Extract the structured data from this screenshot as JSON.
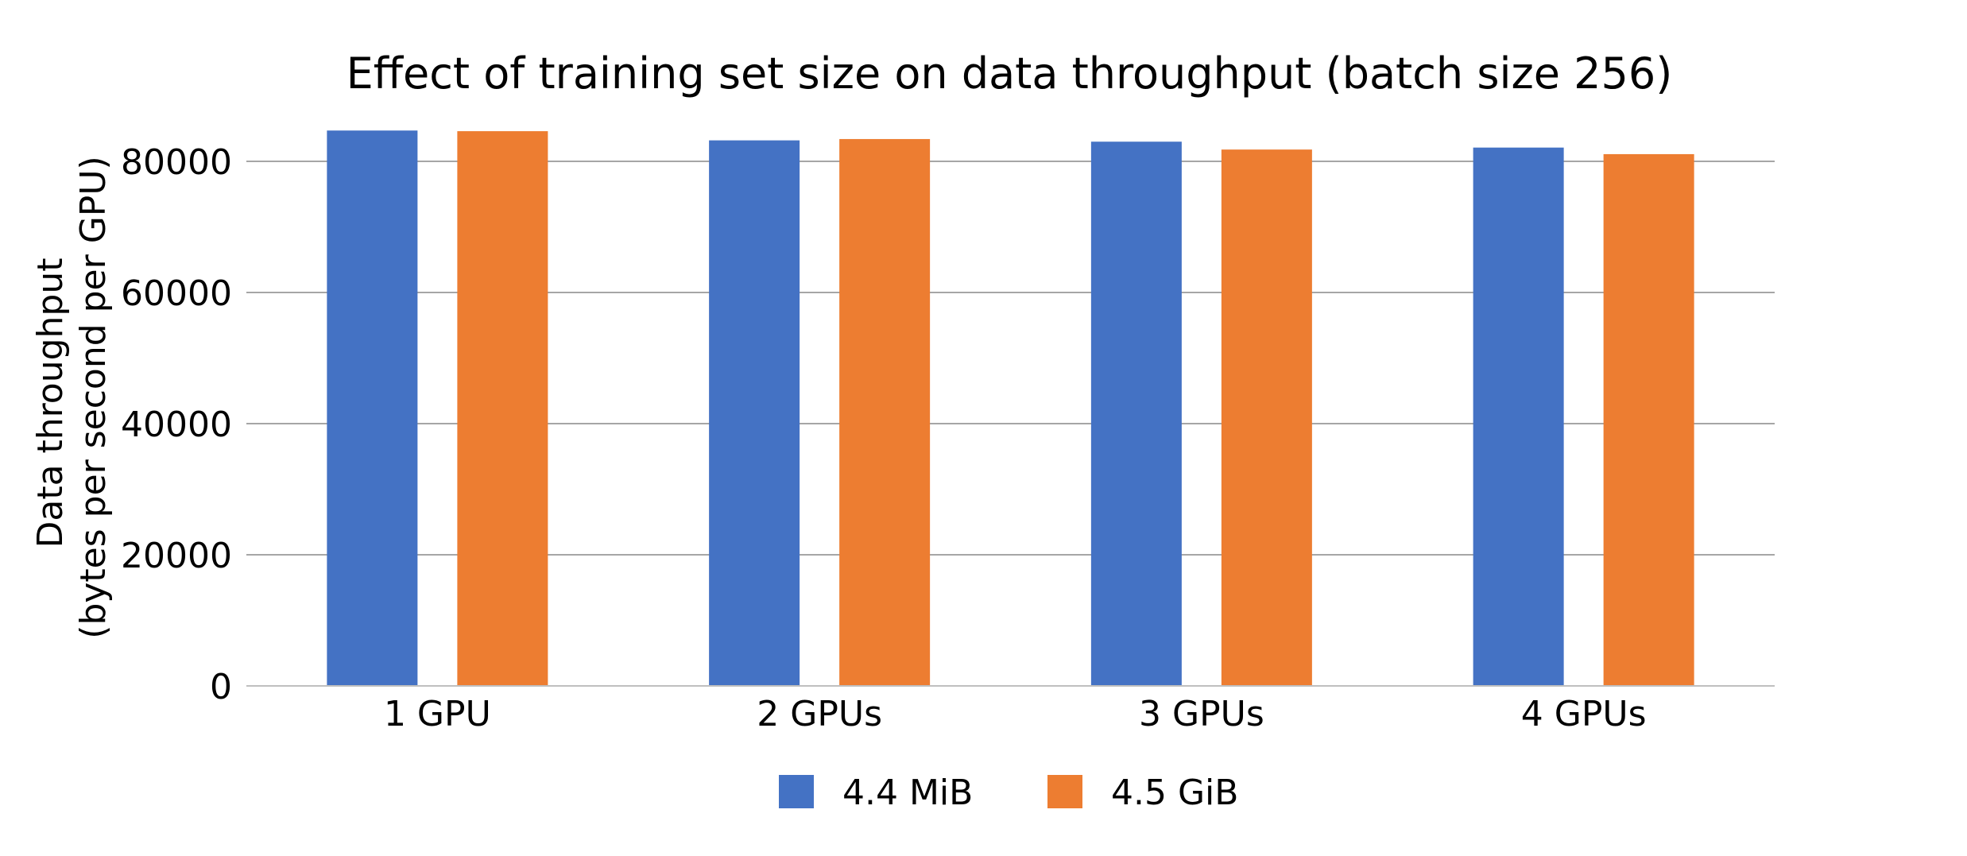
{
  "chart_data": {
    "type": "bar",
    "title": "Effect of training set size on data throughput (batch size 256)",
    "xlabel": "",
    "ylabel": [
      "Data throughput",
      "(bytes per second per GPU)"
    ],
    "categories": [
      "1 GPU",
      "2 GPUs",
      "3 GPUs",
      "4 GPUs"
    ],
    "series": [
      {
        "name": "4.4 MiB",
        "color": "#4472C4",
        "values": [
          84700,
          83200,
          83000,
          82100
        ]
      },
      {
        "name": "4.5 GiB",
        "color": "#ED7D31",
        "values": [
          84600,
          83400,
          81800,
          81100
        ]
      }
    ],
    "ylim": [
      0,
      80000
    ],
    "yticks": [
      0,
      20000,
      40000,
      60000,
      80000
    ],
    "grid": true,
    "gridline_color": "#A6A6A6",
    "legend": "bottom"
  }
}
